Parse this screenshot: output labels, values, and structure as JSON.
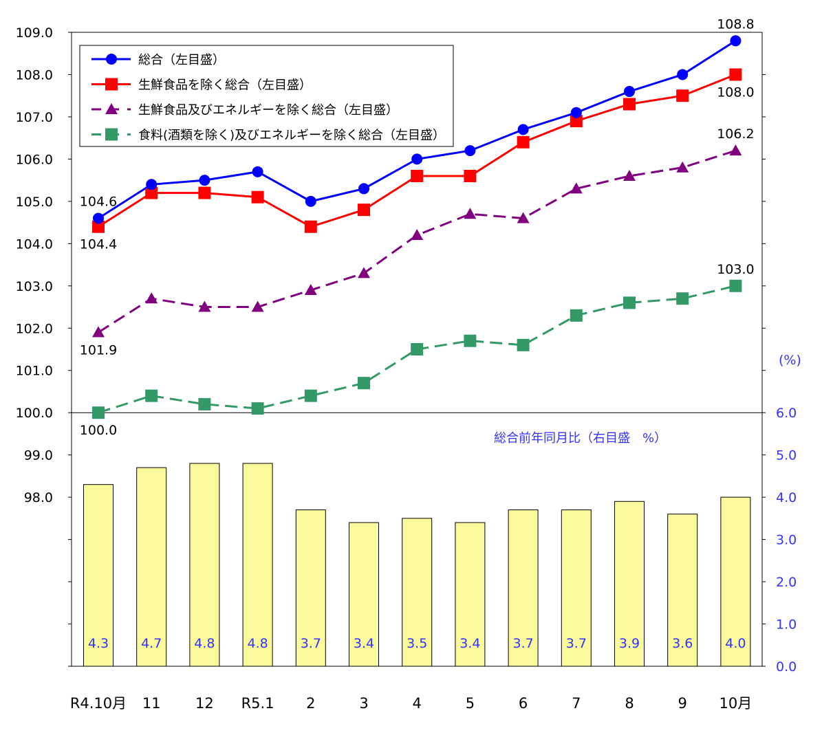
{
  "chart_data": {
    "type": "bar+line",
    "categories": [
      "R4.10月",
      "11",
      "12",
      "R5.1",
      "2",
      "3",
      "4",
      "5",
      "6",
      "7",
      "8",
      "9",
      "10月"
    ],
    "left_axis": {
      "ylim": [
        94,
        109
      ],
      "tick_labels": [
        "98.0",
        "99.0",
        "100.0",
        "101.0",
        "102.0",
        "103.0",
        "104.0",
        "105.0",
        "106.0",
        "107.0",
        "108.0",
        "109.0"
      ],
      "unlabeled_ticks": [
        94,
        95,
        96,
        97
      ]
    },
    "right_axis": {
      "unit_label": "(%)",
      "ylim": [
        0,
        15
      ],
      "tick_labels": [
        "0.0",
        "1.0",
        "2.0",
        "3.0",
        "4.0",
        "5.0",
        "6.0"
      ],
      "unlabeled_ticks": [
        7,
        8,
        9,
        10,
        11,
        12,
        13,
        14
      ]
    },
    "series": [
      {
        "name": "総合（左目盛）",
        "type": "line",
        "axis": "left",
        "color": "#0000FF",
        "marker": "circle",
        "dash": false,
        "values": [
          104.6,
          105.4,
          105.5,
          105.7,
          105.0,
          105.3,
          106.0,
          106.2,
          106.7,
          107.1,
          107.6,
          108.0,
          108.8
        ],
        "labels": [
          {
            "index": 0,
            "text": "104.6",
            "pos": "above"
          },
          {
            "index": 12,
            "text": "108.8",
            "pos": "above"
          }
        ]
      },
      {
        "name": "生鮮食品を除く総合（左目盛）",
        "type": "line",
        "axis": "left",
        "color": "#FF0000",
        "marker": "square",
        "dash": false,
        "values": [
          104.4,
          105.2,
          105.2,
          105.1,
          104.4,
          104.8,
          105.6,
          105.6,
          106.4,
          106.9,
          107.3,
          107.5,
          108.0
        ],
        "labels": [
          {
            "index": 0,
            "text": "104.4",
            "pos": "below"
          },
          {
            "index": 12,
            "text": "108.0",
            "pos": "below"
          }
        ]
      },
      {
        "name": "生鮮食品及びエネルギーを除く総合（左目盛）",
        "type": "line",
        "axis": "left",
        "color": "#800080",
        "marker": "triangle",
        "dash": true,
        "values": [
          101.9,
          102.7,
          102.5,
          102.5,
          102.9,
          103.3,
          104.2,
          104.7,
          104.6,
          105.3,
          105.6,
          105.8,
          106.2
        ],
        "labels": [
          {
            "index": 0,
            "text": "101.9",
            "pos": "below"
          },
          {
            "index": 12,
            "text": "106.2",
            "pos": "above"
          }
        ]
      },
      {
        "name": "食料(酒類を除く)及びエネルギーを除く総合（左目盛）",
        "type": "line",
        "axis": "left",
        "color": "#339966",
        "marker": "square",
        "dash": true,
        "values": [
          100.0,
          100.4,
          100.2,
          100.1,
          100.4,
          100.7,
          101.5,
          101.7,
          101.6,
          102.3,
          102.6,
          102.7,
          103.0
        ],
        "labels": [
          {
            "index": 0,
            "text": "100.0",
            "pos": "below"
          },
          {
            "index": 12,
            "text": "103.0",
            "pos": "above"
          }
        ]
      },
      {
        "name": "総合前年同月比（右目盛　%）",
        "type": "bar",
        "axis": "right",
        "color": "#FAFA9C",
        "values": [
          4.3,
          4.7,
          4.8,
          4.8,
          3.7,
          3.4,
          3.5,
          3.4,
          3.7,
          3.7,
          3.9,
          3.6,
          4.0
        ],
        "value_labels": [
          "4.3",
          "4.7",
          "4.8",
          "4.8",
          "3.7",
          "3.4",
          "3.5",
          "3.4",
          "3.7",
          "3.7",
          "3.9",
          "3.6",
          "4.0"
        ]
      }
    ],
    "legend": {
      "placement": "top-left",
      "entries": [
        "総合（左目盛）",
        "生鮮食品を除く総合（左目盛）",
        "生鮮食品及びエネルギーを除く総合（左目盛）",
        "食料(酒類を除く)及びエネルギーを除く総合（左目盛）"
      ]
    },
    "bar_series_label": "総合前年同月比（右目盛　%）",
    "label_color": "#3333FF",
    "grid": false
  }
}
